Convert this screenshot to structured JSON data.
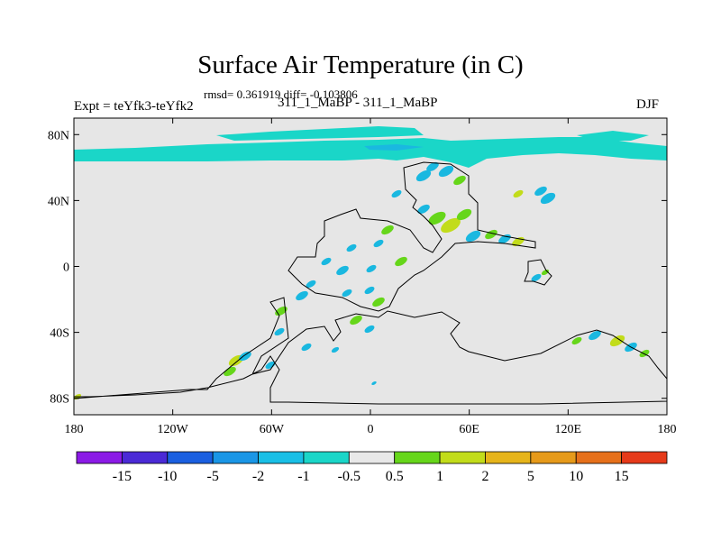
{
  "title": "Surface Air Temperature (in C)",
  "stats": "rmsd= 0.361919 diff= -0.103806",
  "left_label": "Expt = teYfk3-teYfk2",
  "center_label": "311_1_MaBP - 311_1_MaBP",
  "right_label": "DJF",
  "map": {
    "lon_range": [
      -180,
      180
    ],
    "lat_range": [
      -90,
      90
    ],
    "land_color": "#e6e6e6",
    "y_ticks": [
      {
        "value": 80,
        "label": "80N"
      },
      {
        "value": 40,
        "label": "40N"
      },
      {
        "value": 0,
        "label": "0"
      },
      {
        "value": -40,
        "label": "40S"
      },
      {
        "value": -80,
        "label": "80S"
      }
    ],
    "x_ticks": [
      {
        "value": -180,
        "label": "180"
      },
      {
        "value": -120,
        "label": "120W"
      },
      {
        "value": -60,
        "label": "60W"
      },
      {
        "value": 0,
        "label": "0"
      },
      {
        "value": 60,
        "label": "60E"
      },
      {
        "value": 120,
        "label": "120E"
      },
      {
        "value": 180,
        "label": "180"
      }
    ]
  },
  "colorbar": {
    "colors": [
      "#8b1ae6",
      "#4b2ad6",
      "#1a5fe0",
      "#1a96e6",
      "#19bfe6",
      "#1ad6c8",
      "#e8e8e8",
      "#66d61a",
      "#c2dc1a",
      "#e6b41a",
      "#e69a1a",
      "#e6701a",
      "#e63a1a"
    ],
    "labels": [
      "-15",
      "-10",
      "-5",
      "-2",
      "-1",
      "-0.5",
      "0.5",
      "1",
      "2",
      "5",
      "10",
      "15"
    ]
  },
  "fields": {
    "arctic_color": "#1ad6c8",
    "cool_color": "#1ab8e0",
    "warm_color": "#66d61a",
    "hot_color": "#c2dc1a",
    "outline_color": "#000000"
  }
}
